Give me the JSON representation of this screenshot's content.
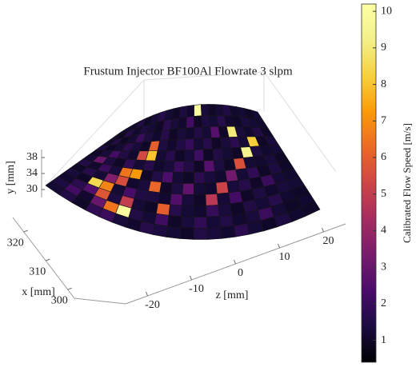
{
  "chart_data": {
    "type": "surface",
    "title": "Frustum Injector BF100Al Flowrate 3 slpm",
    "xlabel": "x [mm]",
    "ylabel": "y [mm]",
    "zlabel": "z [mm]",
    "colorbar_label": "Calibrated Flow Speed [m/s]",
    "colormap": "inferno",
    "values": [
      [
        1.2,
        1.5,
        1.0,
        1.8,
        2.0,
        1.3,
        1.1,
        1.6,
        1.4,
        1.2,
        1.0,
        1.5,
        1.3,
        1.1,
        1.7,
        1.2,
        1.0,
        1.4,
        1.1,
        1.0
      ],
      [
        1.4,
        2.2,
        1.1,
        3.0,
        6.5,
        10.0,
        1.5,
        1.2,
        2.1,
        1.0,
        1.3,
        1.8,
        1.2,
        1.5,
        1.1,
        1.3,
        2.0,
        1.2,
        1.0,
        1.1
      ],
      [
        1.1,
        1.7,
        2.5,
        5.8,
        1.4,
        5.0,
        1.2,
        1.0,
        6.0,
        1.6,
        1.2,
        1.1,
        1.9,
        1.3,
        1.0,
        1.5,
        1.2,
        1.6,
        1.1,
        1.0
      ],
      [
        1.3,
        1.0,
        8.5,
        6.8,
        1.2,
        2.3,
        1.5,
        1.4,
        1.1,
        2.5,
        1.3,
        1.0,
        4.8,
        1.2,
        2.2,
        1.0,
        1.4,
        1.1,
        1.3,
        1.2
      ],
      [
        1.0,
        1.6,
        1.2,
        3.5,
        5.5,
        1.1,
        1.3,
        6.2,
        1.0,
        1.4,
        2.8,
        1.2,
        1.1,
        5.2,
        1.3,
        1.6,
        1.0,
        2.0,
        1.2,
        1.1
      ],
      [
        1.5,
        1.1,
        2.0,
        1.3,
        6.5,
        7.2,
        1.0,
        1.5,
        2.4,
        1.2,
        1.0,
        1.7,
        1.3,
        1.1,
        3.2,
        1.2,
        1.8,
        1.0,
        1.4,
        1.0
      ],
      [
        1.2,
        3.0,
        1.4,
        1.0,
        1.8,
        1.2,
        1.6,
        1.1,
        1.3,
        2.0,
        1.5,
        1.0,
        2.6,
        1.4,
        1.0,
        5.6,
        1.2,
        1.1,
        1.3,
        1.0
      ],
      [
        1.0,
        1.3,
        2.2,
        1.5,
        1.1,
        5.4,
        8.0,
        1.2,
        1.6,
        1.0,
        1.3,
        2.1,
        1.0,
        1.5,
        1.2,
        1.0,
        9.5,
        1.4,
        1.1,
        1.2
      ],
      [
        1.4,
        1.0,
        1.2,
        1.7,
        1.3,
        1.0,
        6.0,
        1.4,
        1.1,
        1.5,
        1.9,
        1.2,
        1.6,
        1.0,
        1.3,
        1.7,
        1.2,
        8.2,
        1.0,
        1.3
      ],
      [
        1.1,
        1.5,
        1.0,
        1.2,
        2.0,
        1.4,
        1.1,
        1.6,
        1.0,
        1.3,
        1.1,
        1.5,
        1.2,
        2.6,
        1.0,
        9.0,
        1.3,
        1.1,
        1.5,
        1.0
      ],
      [
        1.3,
        1.0,
        1.6,
        1.1,
        1.4,
        1.2,
        1.0,
        1.7,
        1.3,
        1.1,
        2.2,
        1.0,
        1.4,
        1.2,
        1.6,
        1.1,
        1.0,
        1.3,
        1.2,
        1.1
      ],
      [
        1.0,
        1.2,
        1.1,
        1.5,
        1.0,
        1.3,
        1.6,
        1.2,
        1.0,
        1.4,
        1.1,
        10.1,
        1.3,
        1.0,
        1.2,
        1.5,
        1.1,
        1.2,
        1.0,
        1.2
      ]
    ],
    "xlim": [
      297,
      325
    ],
    "xticks": [
      300,
      310,
      320
    ],
    "ylim": [
      28,
      40
    ],
    "yticks": [
      30,
      34,
      38
    ],
    "zlim": [
      -25,
      25
    ],
    "zticks": [
      -20,
      -10,
      0,
      10,
      20
    ],
    "clim": [
      0.4,
      10.2
    ],
    "cticks": [
      1,
      2,
      3,
      4,
      5,
      6,
      7,
      8,
      9,
      10
    ]
  }
}
